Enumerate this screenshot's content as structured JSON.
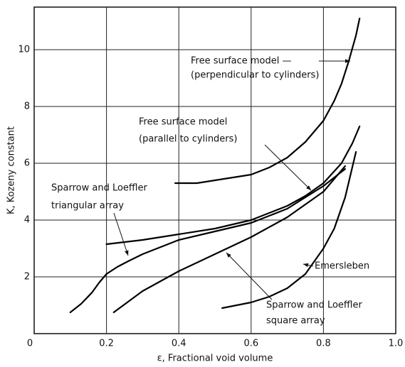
{
  "chart_data": {
    "type": "line",
    "xlabel": "ε, Fractional void volume",
    "ylabel": "K, Kozeny constant",
    "xlim": [
      0,
      1
    ],
    "ylim": [
      0,
      11.5
    ],
    "xticks": [
      0,
      0.2,
      0.4,
      0.6,
      0.8,
      {
        "value": 1,
        "label": "1.0"
      }
    ],
    "yticks": [
      2,
      4,
      6,
      8,
      10
    ],
    "grid": true,
    "series": [
      {
        "label_lines": [
          "Free surface model —",
          "(perpendicular to cylinders)"
        ],
        "color": "#000000",
        "x": [
          0.39,
          0.45,
          0.5,
          0.55,
          0.6,
          0.65,
          0.7,
          0.75,
          0.8,
          0.83,
          0.85,
          0.87,
          0.89,
          0.9
        ],
        "values": [
          5.3,
          5.3,
          5.4,
          5.5,
          5.6,
          5.85,
          6.2,
          6.75,
          7.5,
          8.2,
          8.8,
          9.6,
          10.5,
          11.1
        ]
      },
      {
        "label_lines": [
          "Free surface model",
          "(parallel to cylinders)"
        ],
        "color": "#000000",
        "x": [
          0.2,
          0.3,
          0.4,
          0.5,
          0.6,
          0.7,
          0.75,
          0.8,
          0.85,
          0.88,
          0.9
        ],
        "values": [
          3.15,
          3.3,
          3.5,
          3.7,
          4.0,
          4.5,
          4.85,
          5.3,
          6.0,
          6.7,
          7.3
        ]
      },
      {
        "label_lines": [
          "Sparrow and Loeffler",
          "triangular array"
        ],
        "color": "#000000",
        "x": [
          0.1,
          0.13,
          0.16,
          0.18,
          0.2,
          0.23,
          0.26,
          0.3,
          0.4,
          0.5,
          0.6,
          0.7,
          0.8,
          0.86
        ],
        "values": [
          0.75,
          1.05,
          1.45,
          1.8,
          2.1,
          2.35,
          2.55,
          2.8,
          3.3,
          3.6,
          3.9,
          4.4,
          5.2,
          5.8
        ]
      },
      {
        "label_lines": [
          "Sparrow and Loeffler",
          "square array"
        ],
        "color": "#000000",
        "x": [
          0.22,
          0.3,
          0.4,
          0.5,
          0.6,
          0.7,
          0.8,
          0.86
        ],
        "values": [
          0.75,
          1.5,
          2.2,
          2.8,
          3.4,
          4.1,
          5.0,
          5.9
        ]
      },
      {
        "label_lines": [
          "Emersleben"
        ],
        "color": "#000000",
        "x": [
          0.52,
          0.6,
          0.65,
          0.7,
          0.75,
          0.8,
          0.83,
          0.86,
          0.89
        ],
        "values": [
          0.9,
          1.1,
          1.3,
          1.6,
          2.1,
          3.0,
          3.7,
          4.8,
          6.4
        ]
      }
    ]
  }
}
